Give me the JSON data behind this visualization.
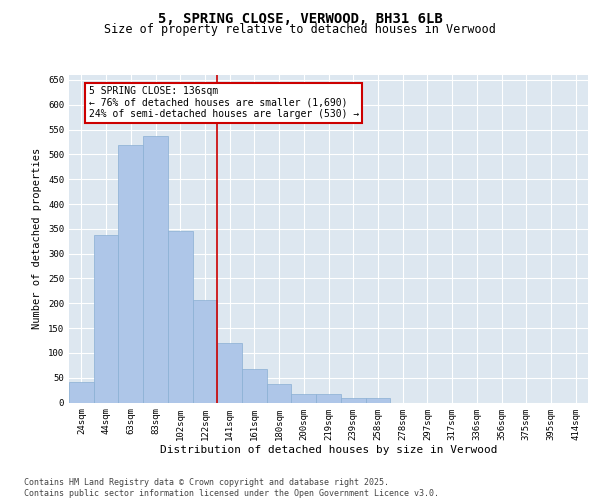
{
  "title": "5, SPRING CLOSE, VERWOOD, BH31 6LB",
  "subtitle": "Size of property relative to detached houses in Verwood",
  "xlabel": "Distribution of detached houses by size in Verwood",
  "ylabel": "Number of detached properties",
  "categories": [
    "24sqm",
    "44sqm",
    "63sqm",
    "83sqm",
    "102sqm",
    "122sqm",
    "141sqm",
    "161sqm",
    "180sqm",
    "200sqm",
    "219sqm",
    "239sqm",
    "258sqm",
    "278sqm",
    "297sqm",
    "317sqm",
    "336sqm",
    "356sqm",
    "375sqm",
    "395sqm",
    "414sqm"
  ],
  "values": [
    42,
    338,
    518,
    538,
    345,
    207,
    119,
    67,
    38,
    17,
    17,
    9,
    9,
    0,
    0,
    0,
    0,
    0,
    0,
    0,
    0
  ],
  "bar_color": "#aec6e8",
  "bar_edge_color": "#8aafd4",
  "vline_x_index": 5.5,
  "vline_color": "#cc0000",
  "annotation_text": "5 SPRING CLOSE: 136sqm\n← 76% of detached houses are smaller (1,690)\n24% of semi-detached houses are larger (530) →",
  "annotation_box_color": "#ffffff",
  "annotation_box_edge_color": "#cc0000",
  "ylim": [
    0,
    660
  ],
  "yticks": [
    0,
    50,
    100,
    150,
    200,
    250,
    300,
    350,
    400,
    450,
    500,
    550,
    600,
    650
  ],
  "background_color": "#dde7f0",
  "grid_color": "#ffffff",
  "footer_text": "Contains HM Land Registry data © Crown copyright and database right 2025.\nContains public sector information licensed under the Open Government Licence v3.0.",
  "title_fontsize": 10,
  "subtitle_fontsize": 8.5,
  "xlabel_fontsize": 8,
  "ylabel_fontsize": 7.5,
  "tick_fontsize": 6.5,
  "footer_fontsize": 6,
  "ann_fontsize": 7
}
